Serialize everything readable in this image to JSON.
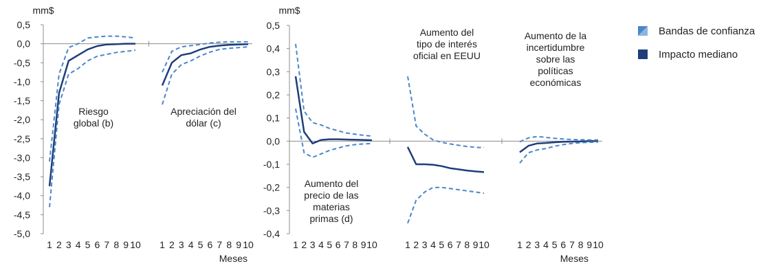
{
  "chart_data": [
    {
      "type": "line",
      "unit_label": "mm$",
      "xlabel": "Meses",
      "ylim": [
        -5.0,
        0.5
      ],
      "yticks": [
        "0,5",
        "0,0",
        "-0,5",
        "-1,0",
        "-1,5",
        "-2,0",
        "-2,5",
        "-3,0",
        "-3,5",
        "-4,0",
        "-4,5",
        "-5,0"
      ],
      "grid": false,
      "panels": [
        {
          "label_lines": [
            "Riesgo",
            "global (b)"
          ],
          "x": [
            1,
            2,
            3,
            4,
            5,
            6,
            7,
            8,
            9,
            10
          ],
          "x_tick_labels": [
            "1",
            "2",
            "3",
            "4",
            "5",
            "6",
            "7",
            "8",
            "9",
            "10"
          ],
          "series": [
            {
              "role": "median",
              "values": [
                -3.75,
                -1.3,
                -0.45,
                -0.3,
                -0.15,
                -0.06,
                -0.02,
                -0.01,
                0.0,
                0.0
              ]
            },
            {
              "role": "band_upper",
              "values": [
                -3.1,
                -0.8,
                -0.1,
                0.0,
                0.15,
                0.18,
                0.2,
                0.2,
                0.18,
                0.15
              ]
            },
            {
              "role": "band_lower",
              "values": [
                -4.3,
                -1.6,
                -0.8,
                -0.65,
                -0.45,
                -0.33,
                -0.28,
                -0.23,
                -0.2,
                -0.17
              ]
            }
          ]
        },
        {
          "label_lines": [
            "Apreciación del",
            "dólar (c)"
          ],
          "x": [
            1,
            2,
            3,
            4,
            5,
            6,
            7,
            8,
            9,
            10
          ],
          "x_tick_labels": [
            "1",
            "2",
            "3",
            "4",
            "5",
            "6",
            "7",
            "8",
            "9",
            "10"
          ],
          "series": [
            {
              "role": "median",
              "values": [
                -1.1,
                -0.5,
                -0.3,
                -0.25,
                -0.15,
                -0.08,
                -0.05,
                -0.03,
                -0.02,
                -0.01
              ]
            },
            {
              "role": "band_upper",
              "values": [
                -0.75,
                -0.2,
                -0.08,
                -0.05,
                -0.02,
                0.02,
                0.04,
                0.05,
                0.05,
                0.05
              ]
            },
            {
              "role": "band_lower",
              "values": [
                -1.6,
                -0.8,
                -0.55,
                -0.45,
                -0.32,
                -0.22,
                -0.15,
                -0.12,
                -0.1,
                -0.08
              ]
            }
          ]
        }
      ]
    },
    {
      "type": "line",
      "unit_label": "mm$",
      "xlabel": "Meses",
      "ylim": [
        -0.4,
        0.5
      ],
      "yticks": [
        "0,5",
        "0,4",
        "0,3",
        "0,2",
        "0,1",
        "0,0",
        "-0,1",
        "-0,2",
        "-0,3",
        "-0,4"
      ],
      "grid": false,
      "panels": [
        {
          "label_lines": [
            "Aumento del",
            "precio de las",
            "materias",
            "primas (d)"
          ],
          "x": [
            1,
            2,
            3,
            4,
            5,
            6,
            7,
            8,
            9,
            10
          ],
          "x_tick_labels": [
            "1",
            "2",
            "3",
            "4",
            "5",
            "6",
            "7",
            "8",
            "9",
            "10"
          ],
          "series": [
            {
              "role": "median",
              "values": [
                0.28,
                0.04,
                -0.01,
                0.005,
                0.008,
                0.008,
                0.007,
                0.006,
                0.005,
                0.004
              ]
            },
            {
              "role": "band_upper",
              "values": [
                0.42,
                0.13,
                0.08,
                0.07,
                0.055,
                0.045,
                0.035,
                0.03,
                0.025,
                0.022
              ]
            },
            {
              "role": "band_lower",
              "values": [
                0.14,
                -0.05,
                -0.07,
                -0.055,
                -0.04,
                -0.03,
                -0.02,
                -0.015,
                -0.012,
                -0.01
              ]
            }
          ]
        },
        {
          "label_lines": [
            "Aumento del",
            "tipo de interés",
            "oficial en EEUU"
          ],
          "x": [
            1,
            2,
            3,
            4,
            5,
            6,
            7,
            8,
            9,
            10
          ],
          "x_tick_labels": [
            "1",
            "2",
            "3",
            "4",
            "5",
            "6",
            "7",
            "8",
            "9",
            "10"
          ],
          "series": [
            {
              "role": "median",
              "values": [
                -0.025,
                -0.1,
                -0.1,
                -0.102,
                -0.108,
                -0.117,
                -0.122,
                -0.127,
                -0.131,
                -0.134
              ]
            },
            {
              "role": "band_upper",
              "values": [
                0.28,
                0.065,
                0.03,
                0.005,
                -0.005,
                -0.012,
                -0.018,
                -0.023,
                -0.027,
                -0.028
              ]
            },
            {
              "role": "band_lower",
              "values": [
                -0.355,
                -0.255,
                -0.22,
                -0.2,
                -0.2,
                -0.205,
                -0.21,
                -0.215,
                -0.22,
                -0.225
              ]
            }
          ]
        },
        {
          "label_lines": [
            "Aumento de la",
            "incertidumbre",
            "sobre las",
            "políticas",
            "económicas"
          ],
          "x": [
            1,
            2,
            3,
            4,
            5,
            6,
            7,
            8,
            9,
            10
          ],
          "x_tick_labels": [
            "1",
            "2",
            "3",
            "4",
            "5",
            "6",
            "7",
            "8",
            "9",
            "10"
          ],
          "series": [
            {
              "role": "median",
              "values": [
                -0.048,
                -0.02,
                -0.01,
                -0.008,
                -0.005,
                -0.003,
                -0.002,
                -0.001,
                0.0,
                0.0
              ]
            },
            {
              "role": "band_upper",
              "values": [
                -0.003,
                0.014,
                0.02,
                0.016,
                0.012,
                0.009,
                0.007,
                0.006,
                0.005,
                0.005
              ]
            },
            {
              "role": "band_lower",
              "values": [
                -0.095,
                -0.05,
                -0.038,
                -0.032,
                -0.022,
                -0.015,
                -0.01,
                -0.007,
                -0.005,
                -0.004
              ]
            }
          ]
        }
      ]
    }
  ],
  "legend": {
    "items": [
      {
        "label": "Bandas de confianza"
      },
      {
        "label": "Impacto mediano"
      }
    ]
  },
  "colors": {
    "band": "#4a86c8",
    "median": "#1f3d7a",
    "axis": "#8c8c8c"
  }
}
